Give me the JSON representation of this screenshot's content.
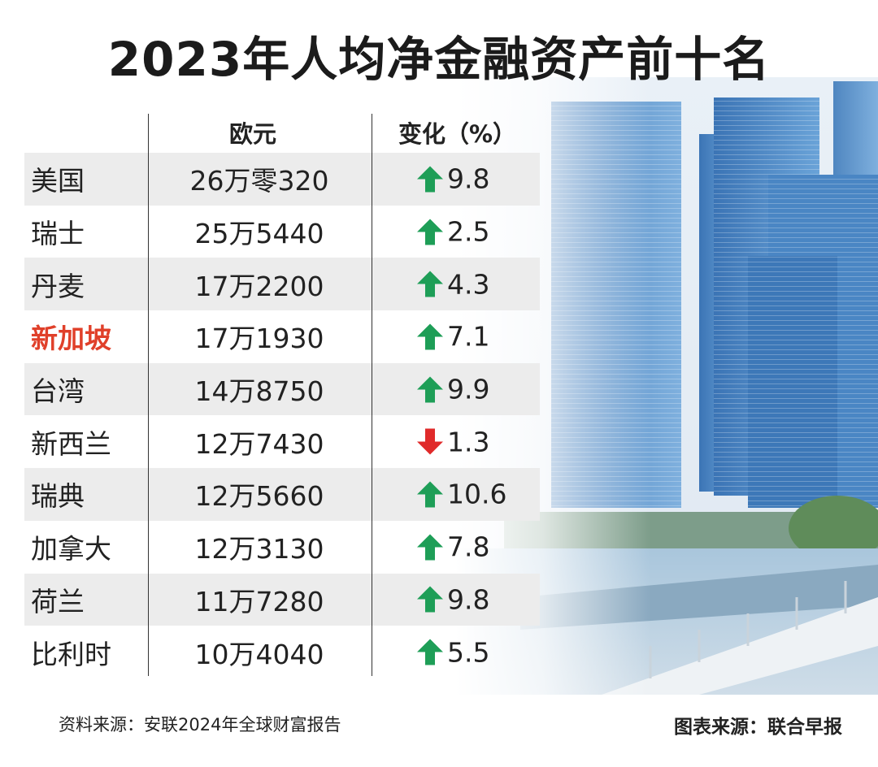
{
  "title": "2023年人均净金融资产前十名",
  "chart_data": {
    "type": "table",
    "title": "2023年人均净金融资产前十名",
    "columns": [
      "",
      "欧元",
      "变化（%）"
    ],
    "rows": [
      {
        "name": "美国",
        "value": "26万零320",
        "change": 9.8,
        "change_text": "9.8",
        "direction": "up"
      },
      {
        "name": "瑞士",
        "value": "25万5440",
        "change": 2.5,
        "change_text": "2.5",
        "direction": "up"
      },
      {
        "name": "丹麦",
        "value": "17万2200",
        "change": 4.3,
        "change_text": "4.3",
        "direction": "up"
      },
      {
        "name": "新加坡",
        "value": "17万1930",
        "change": 7.1,
        "change_text": "7.1",
        "direction": "up",
        "highlight": true
      },
      {
        "name": "台湾",
        "value": "14万8750",
        "change": 9.9,
        "change_text": "9.9",
        "direction": "up"
      },
      {
        "name": "新西兰",
        "value": "12万7430",
        "change": -1.3,
        "change_text": "1.3",
        "direction": "down"
      },
      {
        "name": "瑞典",
        "value": "12万5660",
        "change": 10.6,
        "change_text": "10.6",
        "direction": "up"
      },
      {
        "name": "加拿大",
        "value": "12万3130",
        "change": 7.8,
        "change_text": "7.8",
        "direction": "up"
      },
      {
        "name": "荷兰",
        "value": "11万7280",
        "change": 9.8,
        "change_text": "9.8",
        "direction": "up"
      },
      {
        "name": "比利时",
        "value": "10万4040",
        "change": 5.5,
        "change_text": "5.5",
        "direction": "up"
      }
    ]
  },
  "colors": {
    "up": "#1e9e57",
    "down": "#e02a2a",
    "highlight": "#e0402a",
    "row_shade": "#ececec"
  },
  "footer": {
    "data_source": "资料来源：安联2024年全球财富报告",
    "chart_source": "图表来源：联合早报"
  },
  "icons": {
    "up": "up-arrow-icon",
    "down": "down-arrow-icon"
  }
}
